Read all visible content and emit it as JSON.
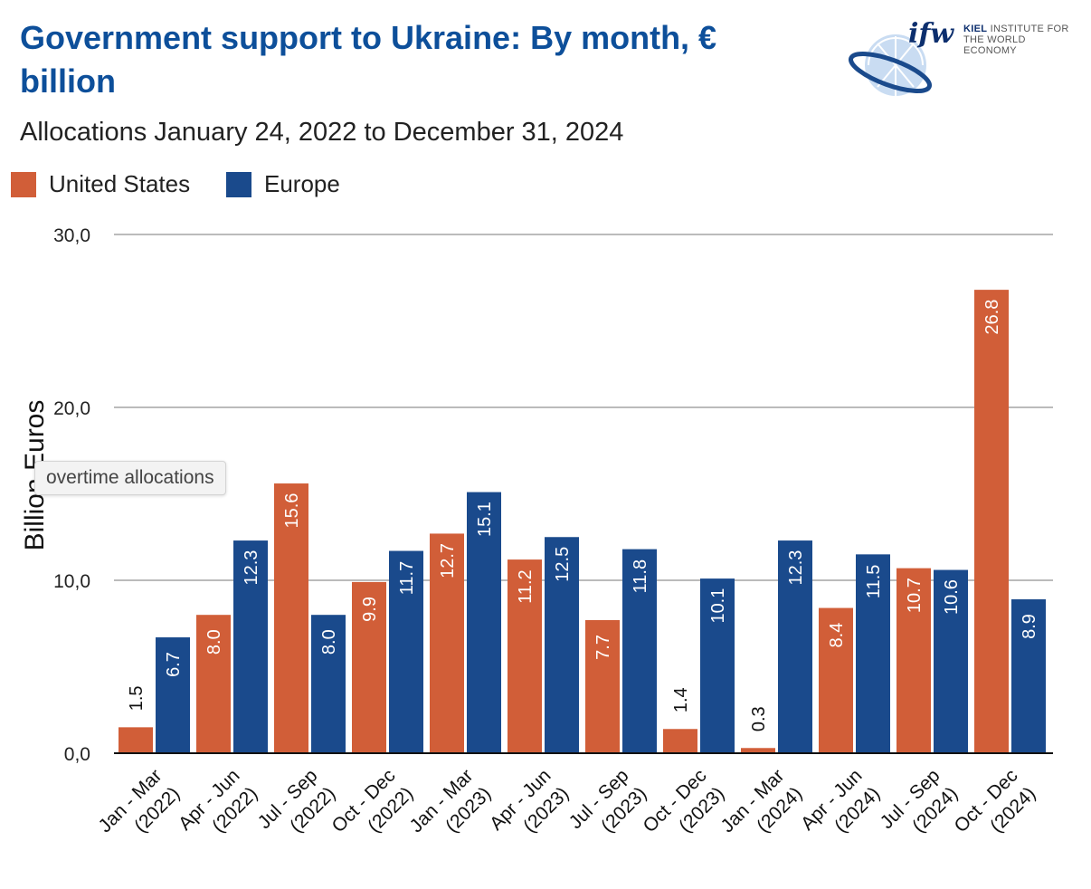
{
  "header": {
    "title": "Government support to Ukraine: By month, € billion",
    "subtitle": "Allocations January 24, 2022 to December 31, 2024"
  },
  "logo": {
    "mark": "ifw",
    "line1_bold": "KIEL",
    "line1": " INSTITUTE FOR",
    "line2": "THE WORLD ECONOMY"
  },
  "tooltip": {
    "text": "overtime allocations"
  },
  "colors": {
    "us": "#d15e38",
    "europe": "#1a4a8c",
    "grid": "#bbbbbb"
  },
  "chart_data": {
    "type": "bar",
    "title": "Government support to Ukraine: By month, € billion",
    "subtitle": "Allocations January 24, 2022 to December 31, 2024",
    "ylabel": "Billion Euros",
    "xlabel": "",
    "ylim": [
      0,
      30
    ],
    "yticks": [
      0,
      10,
      20,
      30
    ],
    "ytick_labels": [
      "0,0",
      "10,0",
      "20,0",
      "30,0"
    ],
    "grid": true,
    "legend_position": "top-left",
    "categories": [
      [
        "Jan - Mar",
        "(2022)"
      ],
      [
        "Apr - Jun",
        "(2022)"
      ],
      [
        "Jul - Sep",
        "(2022)"
      ],
      [
        "Oct - Dec",
        "(2022)"
      ],
      [
        "Jan - Mar",
        "(2023)"
      ],
      [
        "Apr - Jun",
        "(2023)"
      ],
      [
        "Jul - Sep",
        "(2023)"
      ],
      [
        "Oct - Dec",
        "(2023)"
      ],
      [
        "Jan - Mar",
        "(2024)"
      ],
      [
        "Apr - Jun",
        "(2024)"
      ],
      [
        "Jul - Sep",
        "(2024)"
      ],
      [
        "Oct - Dec",
        "(2024)"
      ]
    ],
    "series": [
      {
        "name": "United States",
        "color": "#d15e38",
        "values": [
          1.5,
          8.0,
          15.6,
          9.9,
          12.7,
          11.2,
          7.7,
          1.4,
          0.3,
          8.4,
          10.7,
          26.8
        ]
      },
      {
        "name": "Europe",
        "color": "#1a4a8c",
        "values": [
          6.7,
          12.3,
          8.0,
          11.7,
          15.1,
          12.5,
          11.8,
          10.1,
          12.3,
          11.5,
          10.6,
          8.9
        ]
      }
    ]
  }
}
